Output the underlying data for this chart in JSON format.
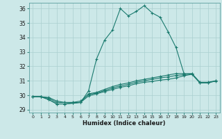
{
  "xlabel": "Humidex (Indice chaleur)",
  "ylabel": "",
  "xlim": [
    -0.5,
    23.5
  ],
  "ylim": [
    28.8,
    36.4
  ],
  "yticks": [
    29,
    30,
    31,
    32,
    33,
    34,
    35,
    36
  ],
  "xticks": [
    0,
    1,
    2,
    3,
    4,
    5,
    6,
    7,
    8,
    9,
    10,
    11,
    12,
    13,
    14,
    15,
    16,
    17,
    18,
    19,
    20,
    21,
    22,
    23
  ],
  "bg_color": "#cce8e8",
  "line_color": "#1a7a6e",
  "grid_color": "#aacfcf",
  "series": [
    [
      29.9,
      29.9,
      29.85,
      29.6,
      29.5,
      29.5,
      29.5,
      30.3,
      32.5,
      33.8,
      34.5,
      36.0,
      35.5,
      35.8,
      36.2,
      35.7,
      35.4,
      34.4,
      33.3,
      31.5,
      null,
      null,
      null,
      null
    ],
    [
      29.9,
      29.9,
      29.7,
      29.4,
      29.4,
      29.45,
      29.5,
      30.1,
      30.2,
      30.4,
      30.6,
      30.75,
      30.85,
      31.0,
      31.1,
      31.2,
      31.3,
      31.4,
      31.5,
      31.5,
      31.5,
      30.9,
      30.9,
      31.0
    ],
    [
      29.9,
      29.9,
      29.7,
      29.4,
      29.4,
      29.45,
      29.5,
      29.95,
      30.1,
      30.25,
      30.4,
      30.55,
      30.65,
      30.8,
      30.9,
      30.95,
      31.05,
      31.1,
      31.2,
      31.35,
      31.45,
      30.85,
      30.85,
      31.0
    ],
    [
      29.9,
      29.9,
      29.8,
      29.5,
      29.5,
      29.5,
      29.6,
      30.05,
      30.15,
      30.32,
      30.5,
      30.65,
      30.75,
      30.9,
      31.0,
      31.1,
      31.2,
      31.27,
      31.37,
      31.42,
      31.48,
      30.88,
      30.87,
      30.98
    ]
  ]
}
